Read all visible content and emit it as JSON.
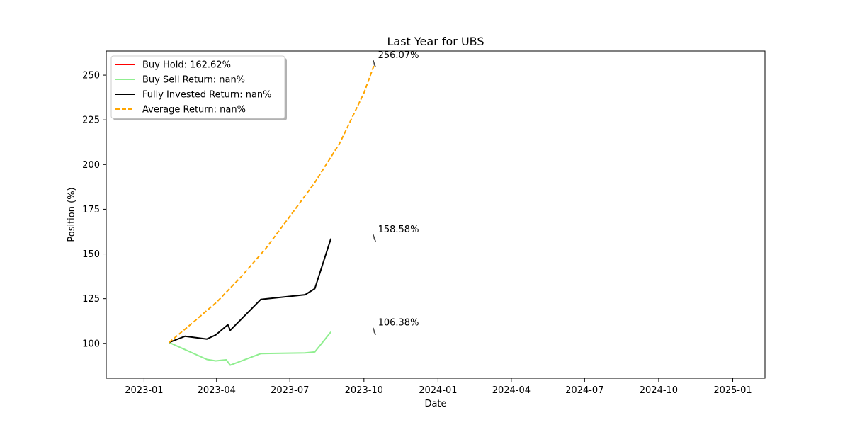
{
  "chart_data": {
    "type": "line",
    "title": "Last Year for UBS",
    "xlabel": "Date",
    "ylabel": "Position (%)",
    "xlim": [
      "2022-11-15",
      "2025-02-10"
    ],
    "ylim": [
      80.5,
      263.5
    ],
    "grid": false,
    "legend_position": "top-left",
    "x_ticks": [
      "2023-01",
      "2023-04",
      "2023-07",
      "2023-10",
      "2024-01",
      "2024-04",
      "2024-07",
      "2024-10",
      "2025-01"
    ],
    "y_ticks": [
      100,
      125,
      150,
      175,
      200,
      225,
      250
    ],
    "series": [
      {
        "name": "Buy Hold: 162.62%",
        "color": "#ff0000",
        "dash": "solid",
        "x": [],
        "y": []
      },
      {
        "name": "Buy Sell Return: nan%",
        "color": "#90ee90",
        "dash": "solid",
        "x": [
          "2023-02-01",
          "2023-03-20",
          "2023-03-31",
          "2023-04-13",
          "2023-04-18",
          "2023-05-26",
          "2023-07-20",
          "2023-08-01",
          "2023-08-21"
        ],
        "y": [
          100.5,
          91.0,
          90.2,
          90.8,
          87.8,
          94.3,
          94.7,
          95.2,
          106.4
        ]
      },
      {
        "name": "Fully Invested Return: nan%",
        "color": "#000000",
        "dash": "solid",
        "x": [
          "2023-02-01",
          "2023-02-21",
          "2023-03-20",
          "2023-03-31",
          "2023-04-15",
          "2023-04-18",
          "2023-05-26",
          "2023-07-20",
          "2023-08-01",
          "2023-08-21"
        ],
        "y": [
          100.5,
          104.0,
          102.4,
          104.7,
          110.4,
          107.3,
          124.6,
          127.2,
          130.6,
          158.6
        ]
      },
      {
        "name": "Average Return: nan%",
        "color": "#ffa500",
        "dash": "dashed",
        "x": [
          "2023-02-01",
          "2023-03-01",
          "2023-04-01",
          "2023-05-01",
          "2023-06-01",
          "2023-07-01",
          "2023-08-01",
          "2023-09-01",
          "2023-10-01",
          "2023-10-14"
        ],
        "y": [
          100.5,
          111.0,
          123.0,
          137.0,
          153.0,
          171.0,
          190.0,
          212.0,
          240.0,
          256.1
        ]
      }
    ],
    "annotations": [
      {
        "text": "256.07%",
        "x": "2023-10-14",
        "y": 256.07
      },
      {
        "text": "158.58%",
        "x": "2023-10-14",
        "y": 158.58
      },
      {
        "text": "106.38%",
        "x": "2023-10-14",
        "y": 106.38
      }
    ]
  }
}
